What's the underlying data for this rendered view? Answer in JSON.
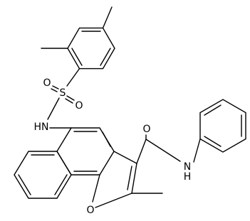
{
  "atom_labels": [
    "O",
    "S",
    "O",
    "HN",
    "O",
    "N",
    "H",
    "O"
  ]
}
